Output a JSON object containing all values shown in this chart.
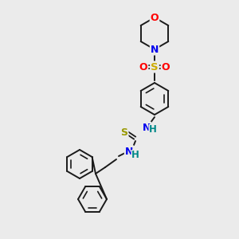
{
  "background_color": "#ebebeb",
  "bond_color": "#1a1a1a",
  "atom_colors": {
    "O": "#ff0000",
    "N": "#0000ee",
    "S_sulfonyl": "#ccaa00",
    "S_thio": "#999900",
    "H": "#008888",
    "C": "#1a1a1a"
  },
  "figsize": [
    3.0,
    3.0
  ],
  "dpi": 100
}
